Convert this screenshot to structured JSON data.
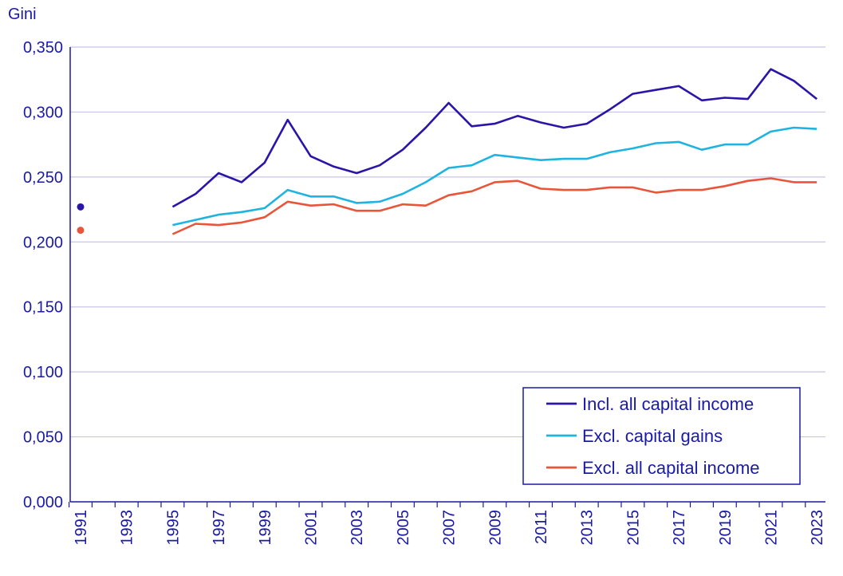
{
  "chart_data": {
    "type": "line",
    "ylabel": "Gini",
    "ylim": [
      0,
      0.35
    ],
    "yticks": [
      "0,000",
      "0,050",
      "0,100",
      "0,150",
      "0,200",
      "0,250",
      "0,300",
      "0,350"
    ],
    "yticks_values": [
      0,
      0.05,
      0.1,
      0.15,
      0.2,
      0.25,
      0.3,
      0.35
    ],
    "x_range": [
      1991,
      2023
    ],
    "xticks": [
      "1991",
      "1993",
      "1995",
      "1997",
      "1999",
      "2001",
      "2003",
      "2005",
      "2007",
      "2009",
      "2011",
      "2013",
      "2015",
      "2017",
      "2019",
      "2021",
      "2023"
    ],
    "grid": true,
    "legend_position": "bottom-right",
    "series": [
      {
        "name": "Incl. all capital income",
        "color": "#2b14a8",
        "isolated_point": {
          "x": 1991,
          "y": 0.227
        },
        "x": [
          1995,
          1996,
          1997,
          1998,
          1999,
          2000,
          2001,
          2002,
          2003,
          2004,
          2005,
          2006,
          2007,
          2008,
          2009,
          2010,
          2011,
          2012,
          2013,
          2014,
          2015,
          2016,
          2017,
          2018,
          2019,
          2020,
          2021,
          2022,
          2023
        ],
        "values": [
          0.227,
          0.237,
          0.253,
          0.246,
          0.261,
          0.294,
          0.266,
          0.258,
          0.253,
          0.259,
          0.271,
          0.288,
          0.307,
          0.289,
          0.291,
          0.297,
          0.292,
          0.288,
          0.291,
          0.302,
          0.314,
          0.317,
          0.32,
          0.309,
          0.311,
          0.31,
          0.333,
          0.324,
          0.31
        ]
      },
      {
        "name": "Excl. capital gains",
        "color": "#1fb3e0",
        "isolated_point": null,
        "x": [
          1995,
          1996,
          1997,
          1998,
          1999,
          2000,
          2001,
          2002,
          2003,
          2004,
          2005,
          2006,
          2007,
          2008,
          2009,
          2010,
          2011,
          2012,
          2013,
          2014,
          2015,
          2016,
          2017,
          2018,
          2019,
          2020,
          2021,
          2022,
          2023
        ],
        "values": [
          0.213,
          0.217,
          0.221,
          0.223,
          0.226,
          0.24,
          0.235,
          0.235,
          0.23,
          0.231,
          0.237,
          0.246,
          0.257,
          0.259,
          0.267,
          0.265,
          0.263,
          0.264,
          0.264,
          0.269,
          0.272,
          0.276,
          0.277,
          0.271,
          0.275,
          0.275,
          0.285,
          0.288,
          0.287
        ]
      },
      {
        "name": "Excl. all capital income",
        "color": "#e8553a",
        "isolated_point": {
          "x": 1991,
          "y": 0.209
        },
        "x": [
          1995,
          1996,
          1997,
          1998,
          1999,
          2000,
          2001,
          2002,
          2003,
          2004,
          2005,
          2006,
          2007,
          2008,
          2009,
          2010,
          2011,
          2012,
          2013,
          2014,
          2015,
          2016,
          2017,
          2018,
          2019,
          2020,
          2021,
          2022,
          2023
        ],
        "values": [
          0.206,
          0.214,
          0.213,
          0.215,
          0.219,
          0.231,
          0.228,
          0.229,
          0.224,
          0.224,
          0.229,
          0.228,
          0.236,
          0.239,
          0.246,
          0.247,
          0.241,
          0.24,
          0.24,
          0.242,
          0.242,
          0.238,
          0.24,
          0.24,
          0.243,
          0.247,
          0.249,
          0.246,
          0.246
        ]
      }
    ]
  },
  "colors": {
    "axis_text": "#1a1aa6",
    "gridline": "#c7c4e6",
    "axis_line": "#1a1aa6",
    "legend_border": "#1a1aa6"
  }
}
